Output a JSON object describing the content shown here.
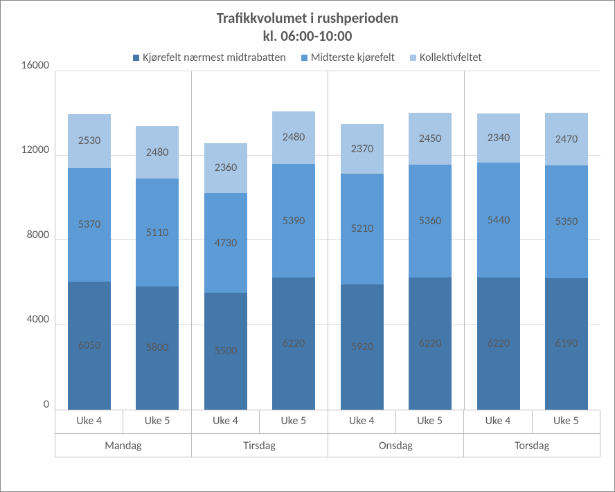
{
  "chart": {
    "type": "stacked-bar",
    "title_line1": "Trafikkvolumet i rushperioden",
    "title_line2": "kl. 06:00-10:00",
    "title_fontsize": 21,
    "title_color": "#595959",
    "background_color": "#ffffff",
    "border_color": "#888888",
    "grid_color": "#d9d9d9",
    "axis_line_color": "#bfbfbf",
    "text_color": "#595959",
    "label_fontsize": 16,
    "tick_fontsize": 16,
    "legend_fontsize": 16,
    "y": {
      "min": 0,
      "max": 16000,
      "step": 4000,
      "ticks": [
        16000,
        12000,
        8000,
        4000,
        0
      ]
    },
    "series": [
      {
        "key": "s1",
        "label": "Kjørefelt nærmest midtrabatten",
        "color": "#4477aa"
      },
      {
        "key": "s2",
        "label": "Midterste kjørefelt",
        "color": "#5c9bd5"
      },
      {
        "key": "s3",
        "label": "Kollektivfeltet",
        "color": "#a8c6e6"
      }
    ],
    "days": [
      {
        "name": "Mandag",
        "bars": [
          {
            "week": "Uke 4",
            "s1": 6050,
            "s2": 5370,
            "s3": 2530
          },
          {
            "week": "Uke 5",
            "s1": 5800,
            "s2": 5110,
            "s3": 2480
          }
        ]
      },
      {
        "name": "Tirsdag",
        "bars": [
          {
            "week": "Uke 4",
            "s1": 5500,
            "s2": 4730,
            "s3": 2360
          },
          {
            "week": "Uke 5",
            "s1": 6220,
            "s2": 5390,
            "s3": 2480
          }
        ]
      },
      {
        "name": "Onsdag",
        "bars": [
          {
            "week": "Uke 4",
            "s1": 5920,
            "s2": 5210,
            "s3": 2370
          },
          {
            "week": "Uke 5",
            "s1": 6220,
            "s2": 5360,
            "s3": 2450
          }
        ]
      },
      {
        "name": "Torsdag",
        "bars": [
          {
            "week": "Uke 4",
            "s1": 6220,
            "s2": 5440,
            "s3": 2340
          },
          {
            "week": "Uke 5",
            "s1": 6190,
            "s2": 5350,
            "s3": 2470
          }
        ]
      }
    ]
  }
}
